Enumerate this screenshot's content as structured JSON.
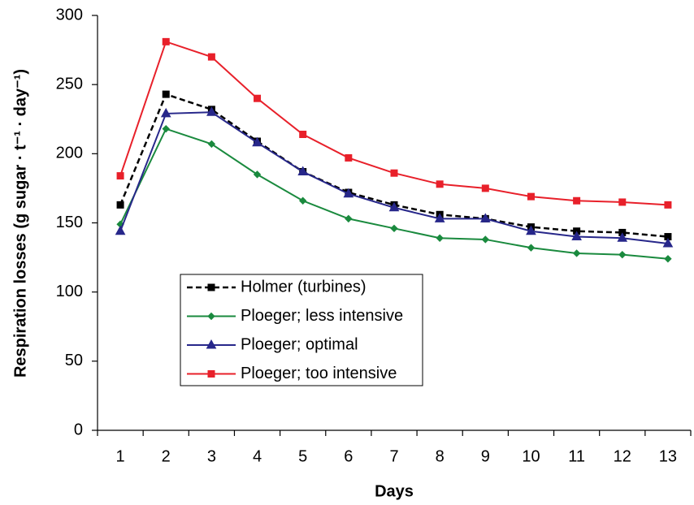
{
  "chart_data": {
    "type": "line",
    "x_label": "Days",
    "y_label": "Respiration losses (g sugar · t⁻¹ · day⁻¹)",
    "categories": [
      "1",
      "2",
      "3",
      "4",
      "5",
      "6",
      "7",
      "8",
      "9",
      "10",
      "11",
      "12",
      "13"
    ],
    "series": [
      {
        "name": "Holmer (turbines)",
        "color": "#000000",
        "marker": "square",
        "dashed": true,
        "values": [
          163,
          243,
          232,
          209,
          187,
          172,
          163,
          156,
          153,
          147,
          144,
          143,
          140
        ]
      },
      {
        "name": "Ploeger; less intensive",
        "color": "#1a8a3e",
        "marker": "diamond",
        "dashed": false,
        "values": [
          149,
          218,
          207,
          185,
          166,
          153,
          146,
          139,
          138,
          132,
          128,
          127,
          124
        ]
      },
      {
        "name": "Ploeger; optimal",
        "color": "#27278a",
        "marker": "triangle",
        "dashed": false,
        "values": [
          144,
          229,
          230,
          208,
          187,
          171,
          161,
          153,
          153,
          144,
          140,
          139,
          135
        ]
      },
      {
        "name": "Ploeger; too intensive",
        "color": "#e8202a",
        "marker": "square",
        "dashed": false,
        "values": [
          184,
          281,
          270,
          240,
          214,
          197,
          186,
          178,
          175,
          169,
          166,
          165,
          163
        ]
      }
    ],
    "ylim": [
      0,
      300
    ],
    "yticks": [
      0,
      50,
      100,
      150,
      200,
      250,
      300
    ],
    "grid": false
  }
}
